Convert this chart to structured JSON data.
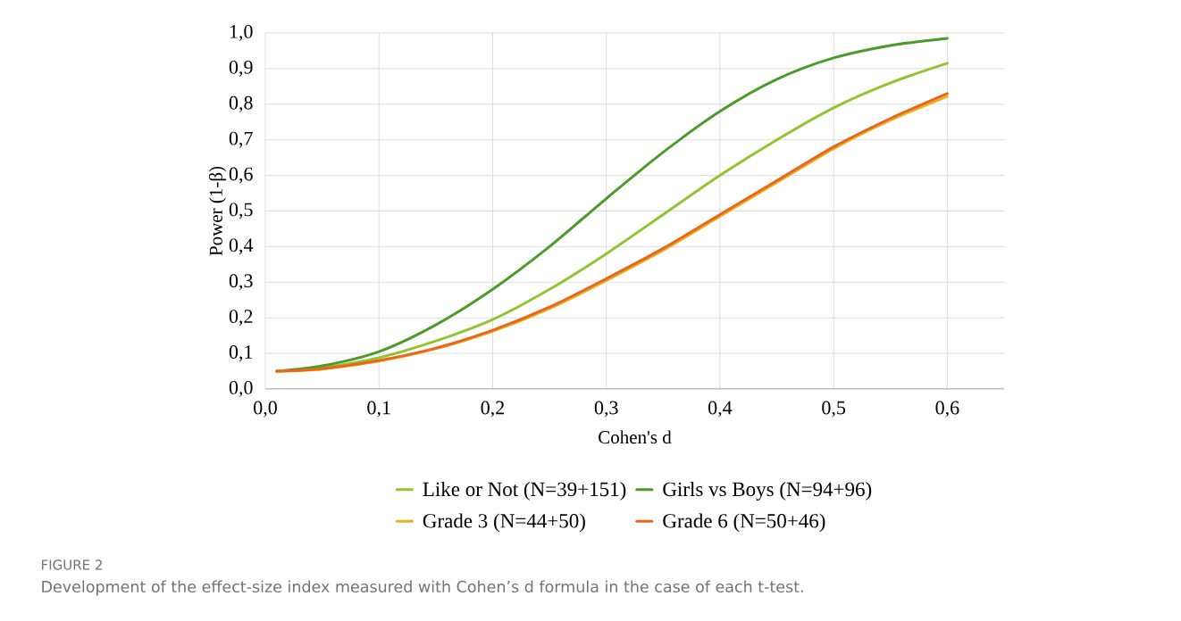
{
  "chart_data": {
    "type": "line",
    "xlabel": "Cohen's d",
    "ylabel": "Power (1-β)",
    "x": [
      0.01,
      0.05,
      0.1,
      0.15,
      0.2,
      0.25,
      0.3,
      0.35,
      0.4,
      0.45,
      0.5,
      0.55,
      0.6
    ],
    "series": [
      {
        "name": "Like or Not (N=39+151)",
        "color": "#92c432",
        "values": [
          0.05,
          0.06,
          0.088,
          0.135,
          0.195,
          0.28,
          0.38,
          0.49,
          0.6,
          0.7,
          0.79,
          0.86,
          0.915
        ]
      },
      {
        "name": "Girls vs Boys (N=94+96)",
        "color": "#4c9a2a",
        "values": [
          0.05,
          0.065,
          0.105,
          0.18,
          0.28,
          0.4,
          0.535,
          0.665,
          0.78,
          0.87,
          0.93,
          0.965,
          0.985
        ]
      },
      {
        "name": "Grade 3 (N=44+50)",
        "color": "#e8b422",
        "values": [
          0.05,
          0.056,
          0.078,
          0.113,
          0.162,
          0.226,
          0.305,
          0.39,
          0.485,
          0.58,
          0.675,
          0.755,
          0.822
        ]
      },
      {
        "name": "Grade 6 (N=50+46)",
        "color": "#e8671c",
        "values": [
          0.05,
          0.057,
          0.08,
          0.115,
          0.165,
          0.23,
          0.31,
          0.395,
          0.49,
          0.585,
          0.68,
          0.76,
          0.83
        ]
      }
    ],
    "xlim": [
      0,
      0.65
    ],
    "ylim": [
      0,
      1
    ],
    "xticks": [
      {
        "value": 0,
        "label": "0,0"
      },
      {
        "value": 0.1,
        "label": "0,1"
      },
      {
        "value": 0.2,
        "label": "0,2"
      },
      {
        "value": 0.3,
        "label": "0,3"
      },
      {
        "value": 0.4,
        "label": "0,4"
      },
      {
        "value": 0.5,
        "label": "0,5"
      },
      {
        "value": 0.6,
        "label": "0,6"
      }
    ],
    "yticks": [
      {
        "value": 0,
        "label": "0,0"
      },
      {
        "value": 0.1,
        "label": "0,1"
      },
      {
        "value": 0.2,
        "label": "0,2"
      },
      {
        "value": 0.3,
        "label": "0,3"
      },
      {
        "value": 0.4,
        "label": "0,4"
      },
      {
        "value": 0.5,
        "label": "0,5"
      },
      {
        "value": 0.6,
        "label": "0,6"
      },
      {
        "value": 0.7,
        "label": "0,7"
      },
      {
        "value": 0.8,
        "label": "0,8"
      },
      {
        "value": 0.9,
        "label": "0,9"
      },
      {
        "value": 1.0,
        "label": "1,0"
      }
    ],
    "grid": true,
    "legend": "bottom",
    "marker": "none",
    "line_style": "solid",
    "annotations": [
      "FIGURE 2",
      "Development of the effect-size index measured with Cohen’s d formula in the case of each t-test."
    ]
  }
}
